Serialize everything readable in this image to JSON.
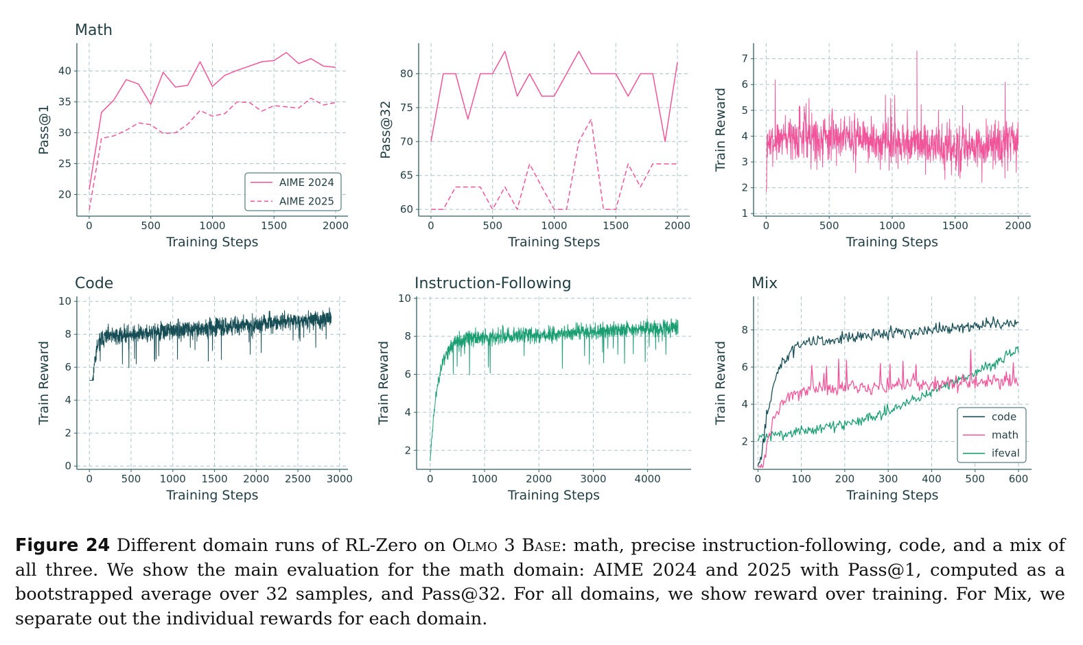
{
  "colors": {
    "pink": "#f0559a",
    "dark_teal": "#174e55",
    "green": "#1a9e72",
    "axis": "#2f5e62",
    "grid": "#a9c4c5",
    "text": "#1f3d43"
  },
  "chart_data": [
    {
      "id": "math_pass1",
      "type": "line",
      "title": "Math",
      "xlabel": "Training Steps",
      "ylabel": "Pass@1",
      "xlim": [
        -100,
        2100
      ],
      "ylim": [
        16.5,
        44.5
      ],
      "xticks": [
        0,
        500,
        1000,
        1500,
        2000
      ],
      "yticks": [
        20,
        25,
        30,
        35,
        40
      ],
      "legend_position": "lower-right",
      "series": [
        {
          "name": "AIME 2024",
          "style": "solid",
          "color": "#f0559a",
          "x": [
            0,
            100,
            200,
            300,
            400,
            500,
            600,
            700,
            800,
            900,
            1000,
            1100,
            1200,
            1300,
            1400,
            1500,
            1600,
            1700,
            1800,
            1900,
            2000
          ],
          "y": [
            20.8,
            33.3,
            35.3,
            38.6,
            37.9,
            34.6,
            39.8,
            37.4,
            37.7,
            41.5,
            37.5,
            39.3,
            40.1,
            40.8,
            41.5,
            41.7,
            43.0,
            41.2,
            42.0,
            40.8,
            40.6
          ]
        },
        {
          "name": "AIME 2025",
          "style": "dashed",
          "color": "#f0559a",
          "x": [
            0,
            100,
            200,
            300,
            400,
            500,
            600,
            700,
            800,
            900,
            1000,
            1100,
            1200,
            1300,
            1400,
            1500,
            1600,
            1700,
            1800,
            1900,
            2000
          ],
          "y": [
            17.5,
            29.1,
            29.5,
            30.4,
            31.6,
            31.3,
            29.9,
            30.0,
            31.4,
            33.6,
            32.7,
            33.1,
            35.0,
            34.9,
            33.5,
            34.4,
            34.2,
            34.0,
            35.6,
            34.5,
            34.9
          ]
        }
      ]
    },
    {
      "id": "math_pass32",
      "type": "line",
      "title": "",
      "xlabel": "Training Steps",
      "ylabel": "Pass@32",
      "xlim": [
        -100,
        2100
      ],
      "ylim": [
        59,
        84.5
      ],
      "xticks": [
        0,
        500,
        1000,
        1500,
        2000
      ],
      "yticks": [
        60,
        65,
        70,
        75,
        80
      ],
      "series": [
        {
          "name": "AIME 2024",
          "style": "solid",
          "color": "#f0559a",
          "x": [
            0,
            100,
            200,
            300,
            400,
            500,
            600,
            700,
            800,
            900,
            1000,
            1100,
            1200,
            1300,
            1400,
            1500,
            1600,
            1700,
            1800,
            1900,
            2000
          ],
          "y": [
            70.0,
            80.0,
            80.0,
            73.3,
            80.0,
            80.0,
            83.3,
            76.7,
            80.0,
            76.7,
            76.7,
            80.0,
            83.3,
            80.0,
            80.0,
            80.0,
            76.7,
            80.0,
            80.0,
            70.0,
            81.7
          ]
        },
        {
          "name": "AIME 2025",
          "style": "dashed",
          "color": "#f0559a",
          "x": [
            0,
            100,
            200,
            300,
            400,
            500,
            600,
            700,
            800,
            900,
            1000,
            1100,
            1200,
            1300,
            1400,
            1500,
            1600,
            1700,
            1800,
            1900,
            2000
          ],
          "y": [
            60.0,
            60.0,
            63.3,
            63.3,
            63.3,
            60.0,
            63.3,
            60.0,
            66.7,
            63.3,
            60.0,
            60.0,
            70.0,
            73.3,
            60.0,
            60.0,
            66.7,
            63.3,
            66.7,
            66.7,
            66.7
          ]
        }
      ]
    },
    {
      "id": "math_reward",
      "type": "line",
      "title": "",
      "xlabel": "Training Steps",
      "ylabel": "Train Reward",
      "xlim": [
        -100,
        2100
      ],
      "ylim": [
        0.9,
        7.6
      ],
      "xticks": [
        0,
        500,
        1000,
        1500,
        2000
      ],
      "yticks": [
        1,
        2,
        3,
        4,
        5,
        6,
        7
      ],
      "series": [
        {
          "name": "math reward",
          "color": "#f0559a",
          "steps": 2000,
          "start": 1.3,
          "mean": 3.8,
          "noise": 0.9,
          "peak": 7.3,
          "trough": 1.2
        }
      ]
    },
    {
      "id": "code_reward",
      "type": "line",
      "title": "Code",
      "xlabel": "Training Steps",
      "ylabel": "Train Reward",
      "xlim": [
        -150,
        3100
      ],
      "ylim": [
        -0.2,
        10.3
      ],
      "xticks": [
        0,
        500,
        1000,
        1500,
        2000,
        2500,
        3000
      ],
      "yticks": [
        0,
        2,
        4,
        6,
        8,
        10
      ],
      "series": [
        {
          "name": "code reward",
          "color": "#174e55",
          "steps": 2900,
          "start": 0.5,
          "plateau_start": 7.8,
          "plateau_end": 9.0,
          "noise": 0.55,
          "min": 5.2
        }
      ]
    },
    {
      "id": "if_reward",
      "type": "line",
      "title": "Instruction-Following",
      "xlabel": "Training Steps",
      "ylabel": "Train Reward",
      "xlim": [
        -250,
        4800
      ],
      "ylim": [
        1.0,
        10.1
      ],
      "xticks": [
        0,
        1000,
        2000,
        3000,
        4000
      ],
      "yticks": [
        2,
        4,
        6,
        8,
        10
      ],
      "series": [
        {
          "name": "ifeval reward",
          "color": "#1a9e72",
          "steps": 4560,
          "start": 1.5,
          "plateau_start": 7.8,
          "plateau_end": 8.5,
          "noise": 0.45,
          "min": 1.2
        }
      ]
    },
    {
      "id": "mix_reward",
      "type": "line",
      "title": "Mix",
      "xlabel": "Training Steps",
      "ylabel": "Train Reward",
      "xlim": [
        -10,
        630
      ],
      "ylim": [
        0.5,
        9.8
      ],
      "xticks": [
        0,
        100,
        200,
        300,
        400,
        500,
        600
      ],
      "yticks": [
        2,
        4,
        6,
        8
      ],
      "legend_position": "lower-right",
      "series": [
        {
          "name": "code",
          "color": "#174e55",
          "steps": 600,
          "start": 1.0,
          "end": 8.4,
          "peak": 9.4
        },
        {
          "name": "math",
          "color": "#f0559a",
          "steps": 600,
          "start": 0.6,
          "end": 5.3,
          "peak": 7.4
        },
        {
          "name": "ifeval",
          "color": "#1a9e72",
          "steps": 600,
          "start": 2.2,
          "end": 6.9,
          "peak": 7.1
        }
      ]
    }
  ],
  "caption": {
    "label": "Figure 24",
    "text_1": " Different domain runs of RL-Zero on ",
    "smallcaps": "Olmo 3 Base",
    "text_2": ": math, precise instruction-following, code, and a mix of all three. We show the main evaluation for the math domain: AIME 2024 and 2025 with Pass@1, computed as a bootstrapped average over 32 samples, and Pass@32. For all domains, we show reward over training. For Mix, we separate out the individual rewards for each domain."
  }
}
